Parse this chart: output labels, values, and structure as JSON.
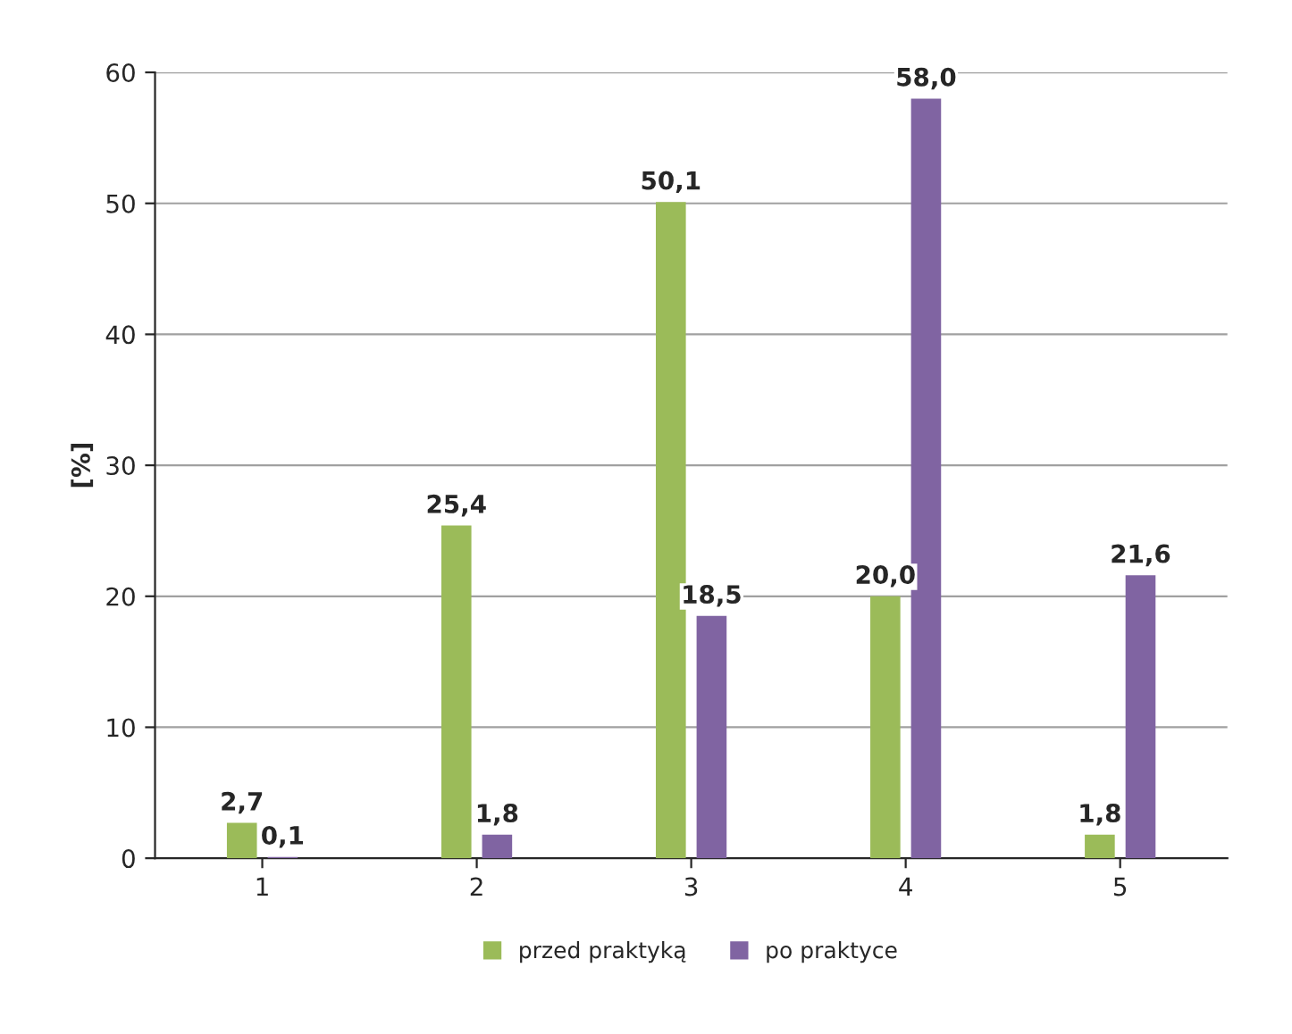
{
  "chart_data": {
    "type": "bar",
    "ylabel": "[%]",
    "categories": [
      "1",
      "2",
      "3",
      "4",
      "5"
    ],
    "series": [
      {
        "name": "przed praktyką",
        "color": "#9bbb59",
        "values": [
          2.7,
          25.4,
          50.1,
          20.0,
          1.8
        ],
        "value_labels": [
          "2,7",
          "25,4",
          "50,1",
          "20,0",
          "1,8"
        ]
      },
      {
        "name": "po praktyce",
        "color": "#8064a2",
        "values": [
          0.1,
          1.8,
          18.5,
          58.0,
          21.6
        ],
        "value_labels": [
          "0,1",
          "1,8",
          "18,5",
          "58,0",
          "21,6"
        ]
      }
    ],
    "ylim": [
      0,
      60
    ],
    "yticks": [
      0,
      10,
      20,
      30,
      40,
      50,
      60
    ],
    "grid": "y",
    "legend": "bottom"
  }
}
